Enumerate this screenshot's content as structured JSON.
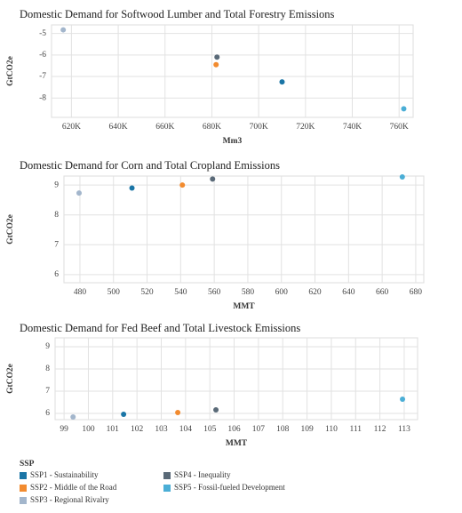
{
  "chart_data": [
    {
      "type": "scatter",
      "title": "Domestic Demand for Softwood Lumber and Total Forestry Emissions",
      "x_label": "Mm3",
      "y_label": "GtCO2e",
      "x": [
        710000,
        681800,
        616500,
        682200,
        762000
      ],
      "y": [
        -7.25,
        -6.45,
        -4.83,
        -6.1,
        -8.5
      ],
      "xlim": [
        611500,
        766000
      ],
      "xticks": [
        {
          "value": 620000,
          "label": "620K"
        },
        {
          "value": 640000,
          "label": "640K"
        },
        {
          "value": 660000,
          "label": "660K"
        },
        {
          "value": 680000,
          "label": "680K"
        },
        {
          "value": 700000,
          "label": "700K"
        },
        {
          "value": 720000,
          "label": "720K"
        },
        {
          "value": 740000,
          "label": "740K"
        },
        {
          "value": 760000,
          "label": "760K"
        }
      ],
      "ylim": [
        -8.9,
        -4.6
      ],
      "yticks": [
        -8,
        -7,
        -6,
        -5
      ],
      "grid": true
    },
    {
      "type": "scatter",
      "title": "Domestic Demand for Corn and Total Cropland Emissions",
      "x_label": "MMT",
      "y_label": "GtCO2e",
      "x": [
        511,
        541,
        479.5,
        559,
        672
      ],
      "y": [
        8.9,
        9.0,
        8.73,
        9.2,
        9.27
      ],
      "xlim": [
        470.5,
        684.8
      ],
      "xticks": [
        480,
        500,
        520,
        540,
        560,
        580,
        600,
        620,
        640,
        660,
        680
      ],
      "ylim": [
        5.73,
        9.3
      ],
      "yticks": [
        6,
        7,
        8,
        9
      ],
      "grid": true
    },
    {
      "type": "scatter",
      "title": "Domestic Demand for Fed Beef and Total Livestock Emissions",
      "x_label": "MMT",
      "y_label": "GtCO2e",
      "x": [
        101.45,
        103.68,
        99.37,
        105.25,
        112.93
      ],
      "y": [
        5.96,
        6.04,
        5.84,
        6.16,
        6.64
      ],
      "xlim": [
        98.63,
        113.55
      ],
      "xticks": [
        99,
        100,
        101,
        102,
        103,
        104,
        105,
        106,
        107,
        108,
        109,
        110,
        111,
        112,
        113
      ],
      "ylim": [
        5.72,
        9.4
      ],
      "yticks": [
        6,
        7,
        8,
        9
      ],
      "grid": true
    }
  ],
  "legend": {
    "title": "SSP",
    "items": [
      {
        "name": "SSP1 - Sustainability",
        "color": "#1a75a6"
      },
      {
        "name": "SSP2 - Middle of the Road",
        "color": "#f28b2f"
      },
      {
        "name": "SSP3 - Regional Rivalry",
        "color": "#a3b6cc"
      },
      {
        "name": "SSP4 - Inequality",
        "color": "#5a6a78"
      },
      {
        "name": "SSP5 - Fossil-fueled Development",
        "color": "#4baed6"
      }
    ]
  }
}
